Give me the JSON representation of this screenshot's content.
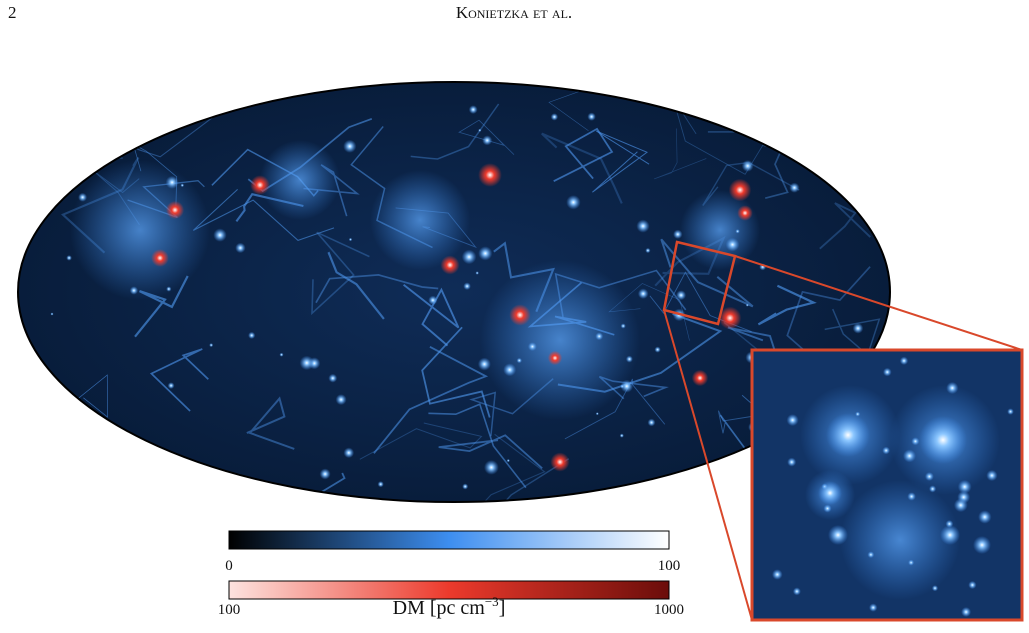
{
  "header": {
    "page_number": "2",
    "running_head": "Konietzka et al."
  },
  "figure": {
    "colorbars": [
      {
        "ticks": [
          "0",
          "100"
        ]
      },
      {
        "ticks": [
          "100",
          "1000"
        ],
        "label_text": "DM [pc cm",
        "label_superscript": "−3",
        "label_close": "]"
      }
    ]
  }
}
